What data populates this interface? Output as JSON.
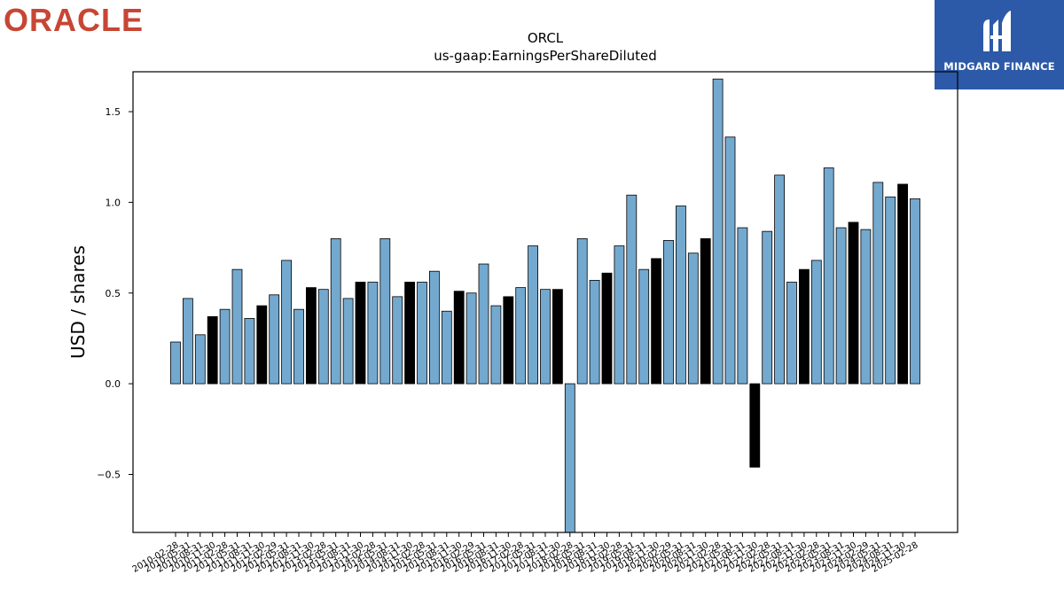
{
  "branding": {
    "company_logo_text": "ORACLE",
    "company_logo_color": "#c74634",
    "sponsor_name": "MIDGARD FINANCE",
    "sponsor_bg_color": "#2c5aa8"
  },
  "chart_data": {
    "type": "bar",
    "title": "ORCL",
    "subtitle": "us-gaap:EarningsPerShareDiluted",
    "xlabel": "",
    "ylabel": "USD / shares",
    "ylim": [
      -0.82,
      1.72
    ],
    "yticks": [
      -0.5,
      0.0,
      0.5,
      1.0,
      1.5
    ],
    "ytick_labels": [
      "−0.5",
      "0.0",
      "0.5",
      "1.0",
      "1.5"
    ],
    "grid": false,
    "colors": {
      "quarterly": "#74a9cf",
      "annual": "#000000",
      "edge": "#000000"
    },
    "categories": [
      "2010-02-28",
      "2010-05-31",
      "2010-08-31",
      "2010-11-30",
      "2011-02-28",
      "2011-05-31",
      "2011-08-31",
      "2011-11-30",
      "2012-02-29",
      "2012-05-31",
      "2012-08-31",
      "2012-11-30",
      "2013-02-28",
      "2013-05-31",
      "2013-08-31",
      "2013-11-30",
      "2014-02-28",
      "2014-05-31",
      "2014-08-31",
      "2014-11-30",
      "2015-02-28",
      "2015-05-31",
      "2015-08-31",
      "2015-11-30",
      "2016-02-29",
      "2016-05-31",
      "2016-08-31",
      "2016-11-30",
      "2017-02-28",
      "2017-05-31",
      "2017-08-31",
      "2017-11-30",
      "2018-02-28",
      "2018-05-31",
      "2018-08-31",
      "2018-11-30",
      "2019-02-28",
      "2019-05-31",
      "2019-08-31",
      "2019-11-30",
      "2020-02-29",
      "2020-05-31",
      "2020-08-31",
      "2020-11-30",
      "2021-02-28",
      "2021-05-31",
      "2021-08-31",
      "2021-11-30",
      "2022-02-28",
      "2022-05-31",
      "2022-08-31",
      "2022-11-30",
      "2023-02-28",
      "2023-05-31",
      "2023-08-31",
      "2023-11-30",
      "2024-02-29",
      "2024-05-31",
      "2024-08-31",
      "2024-11-30",
      "2025-02-28"
    ],
    "values": [
      0.23,
      0.47,
      0.27,
      0.37,
      0.41,
      0.63,
      0.36,
      0.43,
      0.49,
      0.68,
      0.41,
      0.53,
      0.52,
      0.8,
      0.47,
      0.56,
      0.56,
      0.8,
      0.48,
      0.56,
      0.56,
      0.62,
      0.4,
      0.51,
      0.5,
      0.66,
      0.43,
      0.48,
      0.53,
      0.76,
      0.52,
      0.52,
      -0.82,
      0.8,
      0.57,
      0.61,
      0.76,
      1.04,
      0.63,
      0.69,
      0.79,
      0.98,
      0.72,
      0.8,
      1.68,
      1.36,
      0.86,
      -0.46,
      0.84,
      1.15,
      0.56,
      0.63,
      0.68,
      1.19,
      0.86,
      0.89,
      0.85,
      1.11,
      1.03,
      1.1,
      1.02
    ],
    "annual": [
      false,
      false,
      false,
      true,
      false,
      false,
      false,
      true,
      false,
      false,
      false,
      true,
      false,
      false,
      false,
      true,
      false,
      false,
      false,
      true,
      false,
      false,
      false,
      true,
      false,
      false,
      false,
      true,
      false,
      false,
      false,
      true,
      false,
      false,
      false,
      true,
      false,
      false,
      false,
      true,
      false,
      false,
      false,
      true,
      false,
      false,
      false,
      true,
      false,
      false,
      false,
      true,
      false,
      false,
      false,
      true,
      false,
      false,
      false,
      true,
      false
    ]
  }
}
